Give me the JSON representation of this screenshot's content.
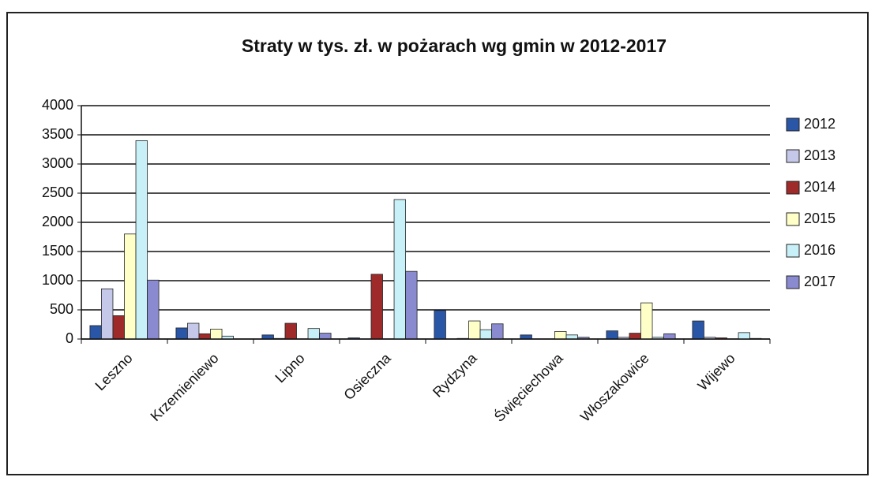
{
  "chart_data": {
    "type": "bar",
    "title": "Straty w tys. zł. w pożarach wg gmin w 2012-2017",
    "categories": [
      "Leszno",
      "Krzemieniewo",
      "Lipno",
      "Osieczna",
      "Rydzyna",
      "Święciechowa",
      "Włoszakowice",
      "Wijewo"
    ],
    "series": [
      {
        "name": "2012",
        "color": "#2a56a8",
        "values": [
          230,
          190,
          70,
          20,
          490,
          70,
          140,
          310
        ]
      },
      {
        "name": "2013",
        "color": "#c5c8e8",
        "values": [
          860,
          270,
          10,
          0,
          0,
          0,
          30,
          30
        ]
      },
      {
        "name": "2014",
        "color": "#9e2a2a",
        "values": [
          400,
          90,
          270,
          1110,
          10,
          0,
          100,
          20
        ]
      },
      {
        "name": "2015",
        "color": "#ffffc8",
        "values": [
          1800,
          170,
          0,
          0,
          310,
          130,
          620,
          0
        ]
      },
      {
        "name": "2016",
        "color": "#c8f0f8",
        "values": [
          3400,
          50,
          180,
          2390,
          160,
          70,
          30,
          110
        ]
      },
      {
        "name": "2017",
        "color": "#8a8ad0",
        "values": [
          1010,
          0,
          100,
          1160,
          260,
          30,
          90,
          10
        ]
      }
    ],
    "ylim": [
      0,
      4000
    ],
    "yticks": [
      0,
      500,
      1000,
      1500,
      2000,
      2500,
      3000,
      3500,
      4000
    ],
    "grid": true,
    "legend": "right"
  }
}
